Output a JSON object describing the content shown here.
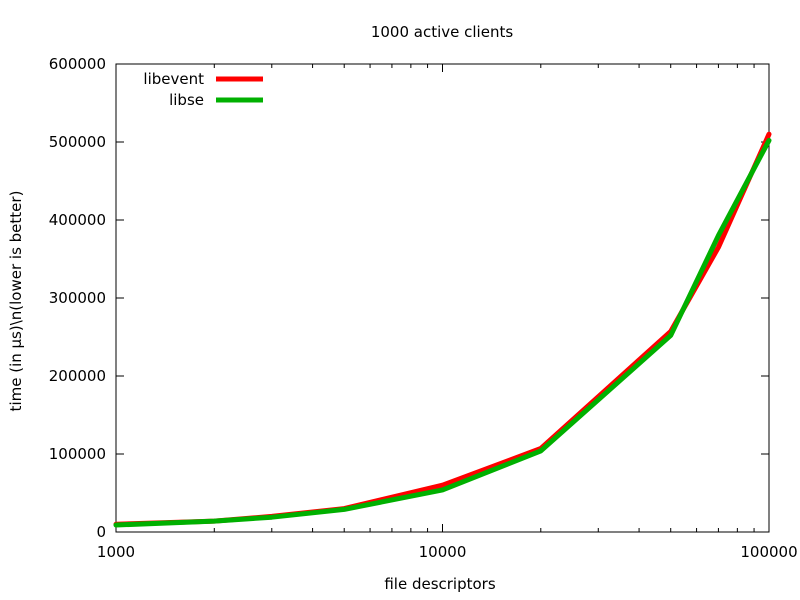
{
  "chart_data": {
    "type": "line",
    "title": "1000 active clients",
    "xlabel": "file descriptors",
    "ylabel": "time (in µs)\\n(lower is better)",
    "x_scale": "log",
    "xlim": [
      1000,
      100000
    ],
    "ylim": [
      0,
      600000
    ],
    "x_ticks": [
      {
        "value": 1000,
        "label": "1000"
      },
      {
        "value": 10000,
        "label": "10000"
      },
      {
        "value": 100000,
        "label": "100000"
      }
    ],
    "y_ticks": [
      {
        "value": 0,
        "label": "0"
      },
      {
        "value": 100000,
        "label": "100000"
      },
      {
        "value": 200000,
        "label": "200000"
      },
      {
        "value": 300000,
        "label": "300000"
      },
      {
        "value": 400000,
        "label": "400000"
      },
      {
        "value": 500000,
        "label": "500000"
      },
      {
        "value": 600000,
        "label": "600000"
      }
    ],
    "grid": false,
    "legend_position": "top-left",
    "series": [
      {
        "name": "libevent",
        "color": "#ff0000",
        "x": [
          1000,
          2000,
          3000,
          5000,
          10000,
          20000,
          50000,
          70000,
          100000
        ],
        "y": [
          10000,
          14000,
          20000,
          30000,
          60000,
          107000,
          257000,
          365000,
          510000
        ]
      },
      {
        "name": "libse",
        "color": "#00b000",
        "x": [
          1000,
          2000,
          3000,
          5000,
          10000,
          20000,
          50000,
          70000,
          100000
        ],
        "y": [
          9000,
          14000,
          19000,
          29000,
          54000,
          104000,
          252000,
          380000,
          502000
        ]
      }
    ]
  }
}
